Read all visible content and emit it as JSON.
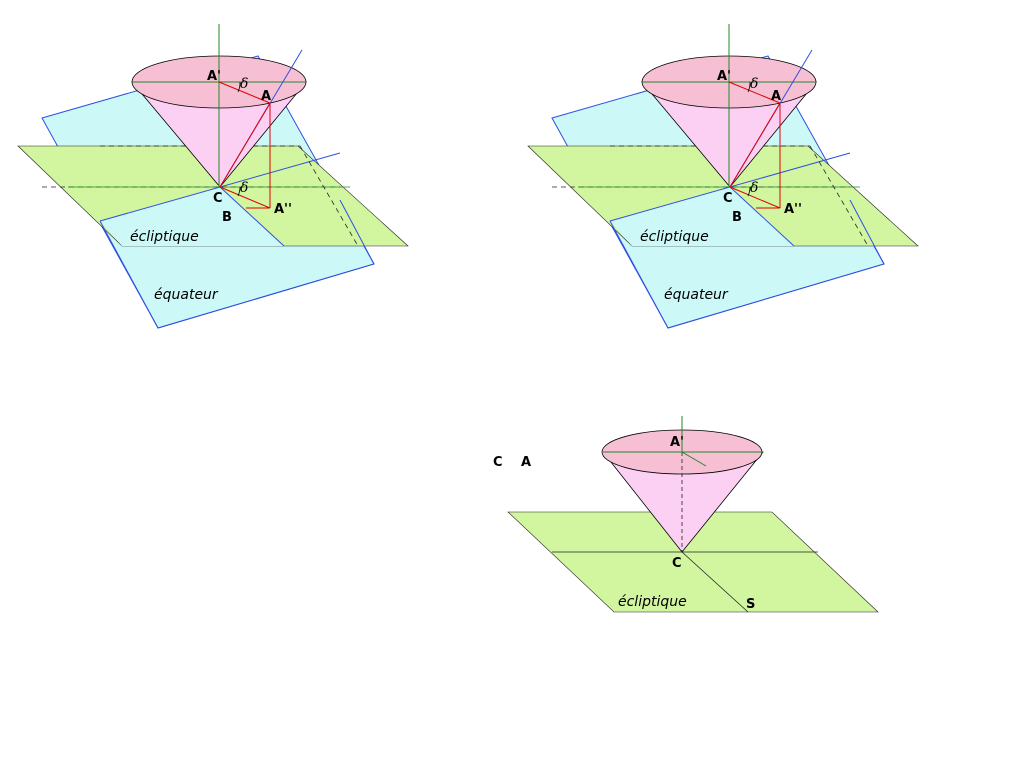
{
  "colors": {
    "ecliptic_fill": "#d2f5a0",
    "equator_fill": "#ccf8f8",
    "cone_fill": "#fbd0f2",
    "ellipse_fill": "#f7bfd4",
    "ecliptic_edge": "#000000",
    "equator_edge": "#3050e0",
    "axis": "#228822",
    "red": "#e00000"
  },
  "labels": {
    "a_prime": "A'",
    "a": "A",
    "a_double": "A''",
    "c": "C",
    "b": "B",
    "s": "S",
    "delta": "δ",
    "ecliptique": "écliptique",
    "equateur": "équateur"
  }
}
